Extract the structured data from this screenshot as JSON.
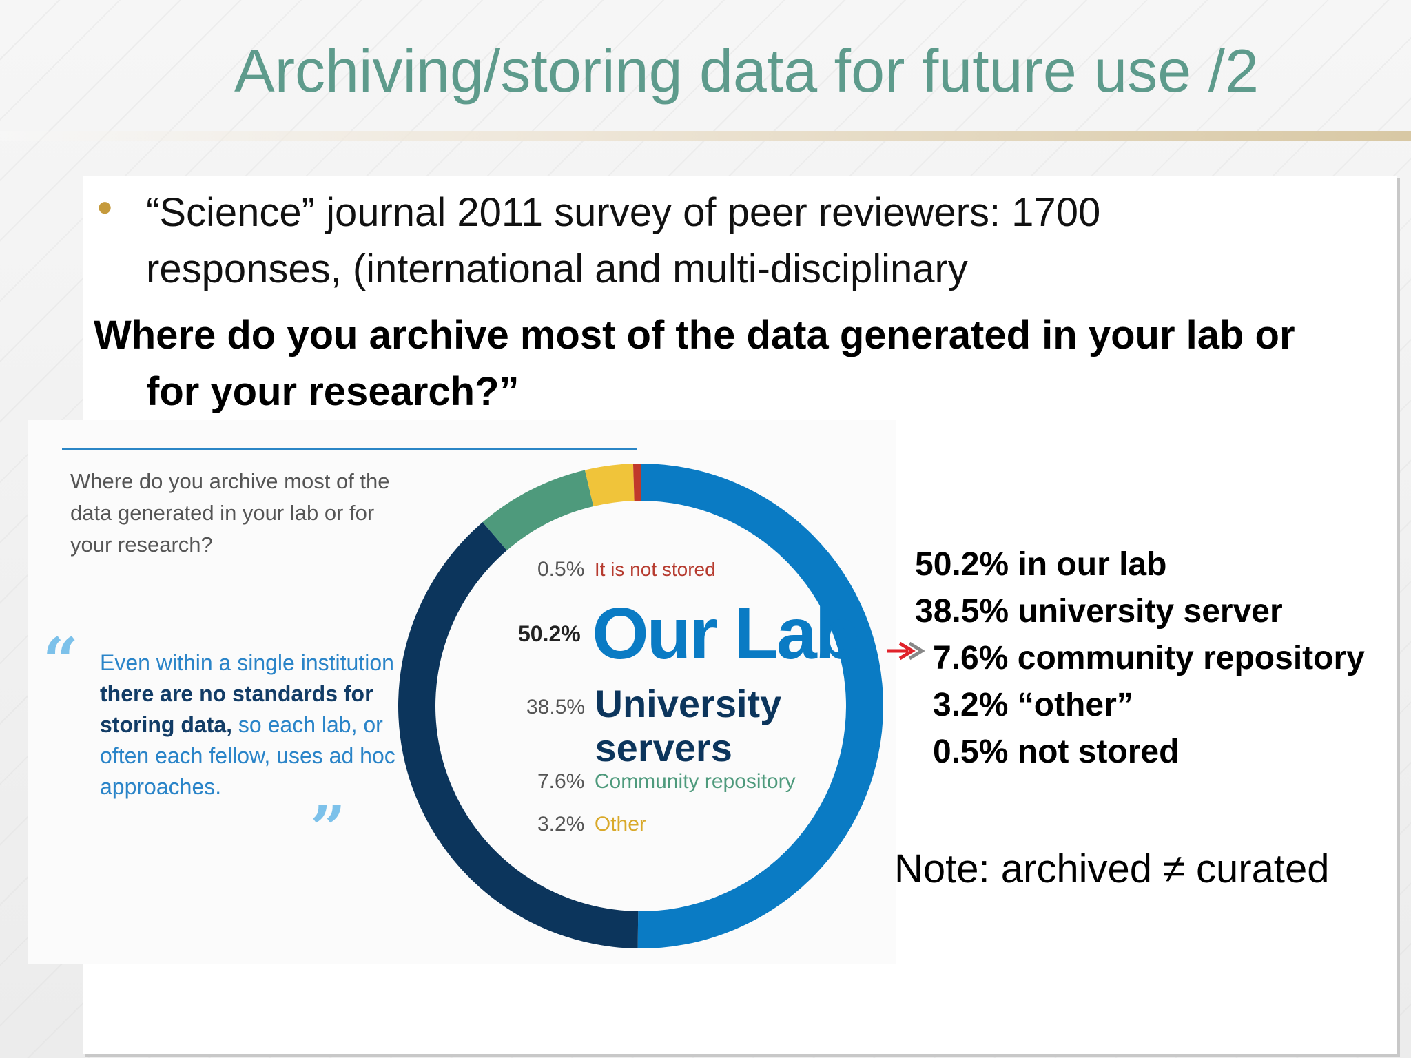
{
  "slide": {
    "title": "Archiving/storing data for future use /2",
    "bullet": "“Science” journal 2011 survey of peer reviewers: 1700 responses, (international and multi-disciplinary",
    "question_line1": "Where do you archive most of the data generated in your lab or",
    "question_line2": "for your research?”",
    "note": "Note: archived ≠ curated",
    "bullet_color": "#c59a3c",
    "title_color": "#5e9b8c"
  },
  "stats": [
    "50.2% in our lab",
    "38.5% university server",
    "7.6% community repository",
    "3.2% “other”",
    "0.5% not stored"
  ],
  "infographic": {
    "question": "Where do you archive most of the data generated in your lab or for your research?",
    "quote_part1": "Even within a single institution",
    "quote_part2": "there are no standards for storing data,",
    "quote_part3": "so each lab, or often each fellow, uses ad hoc approaches.",
    "open_quote": "“",
    "close_quote": "”"
  },
  "chart_data": {
    "type": "pie",
    "title": "",
    "slices": [
      {
        "label": "Our Lab",
        "value": 50.2,
        "pct_label": "50.2%",
        "color": "#0a7bc4"
      },
      {
        "label": "University servers",
        "value": 38.5,
        "pct_label": "38.5%",
        "color": "#0c355c"
      },
      {
        "label": "Community repository",
        "value": 7.6,
        "pct_label": "7.6%",
        "color": "#4e9a7c"
      },
      {
        "label": "Other",
        "value": 3.2,
        "pct_label": "3.2%",
        "color": "#f0c43a"
      },
      {
        "label": "It is not stored",
        "value": 0.5,
        "pct_label": "0.5%",
        "color": "#c0392b"
      }
    ]
  }
}
